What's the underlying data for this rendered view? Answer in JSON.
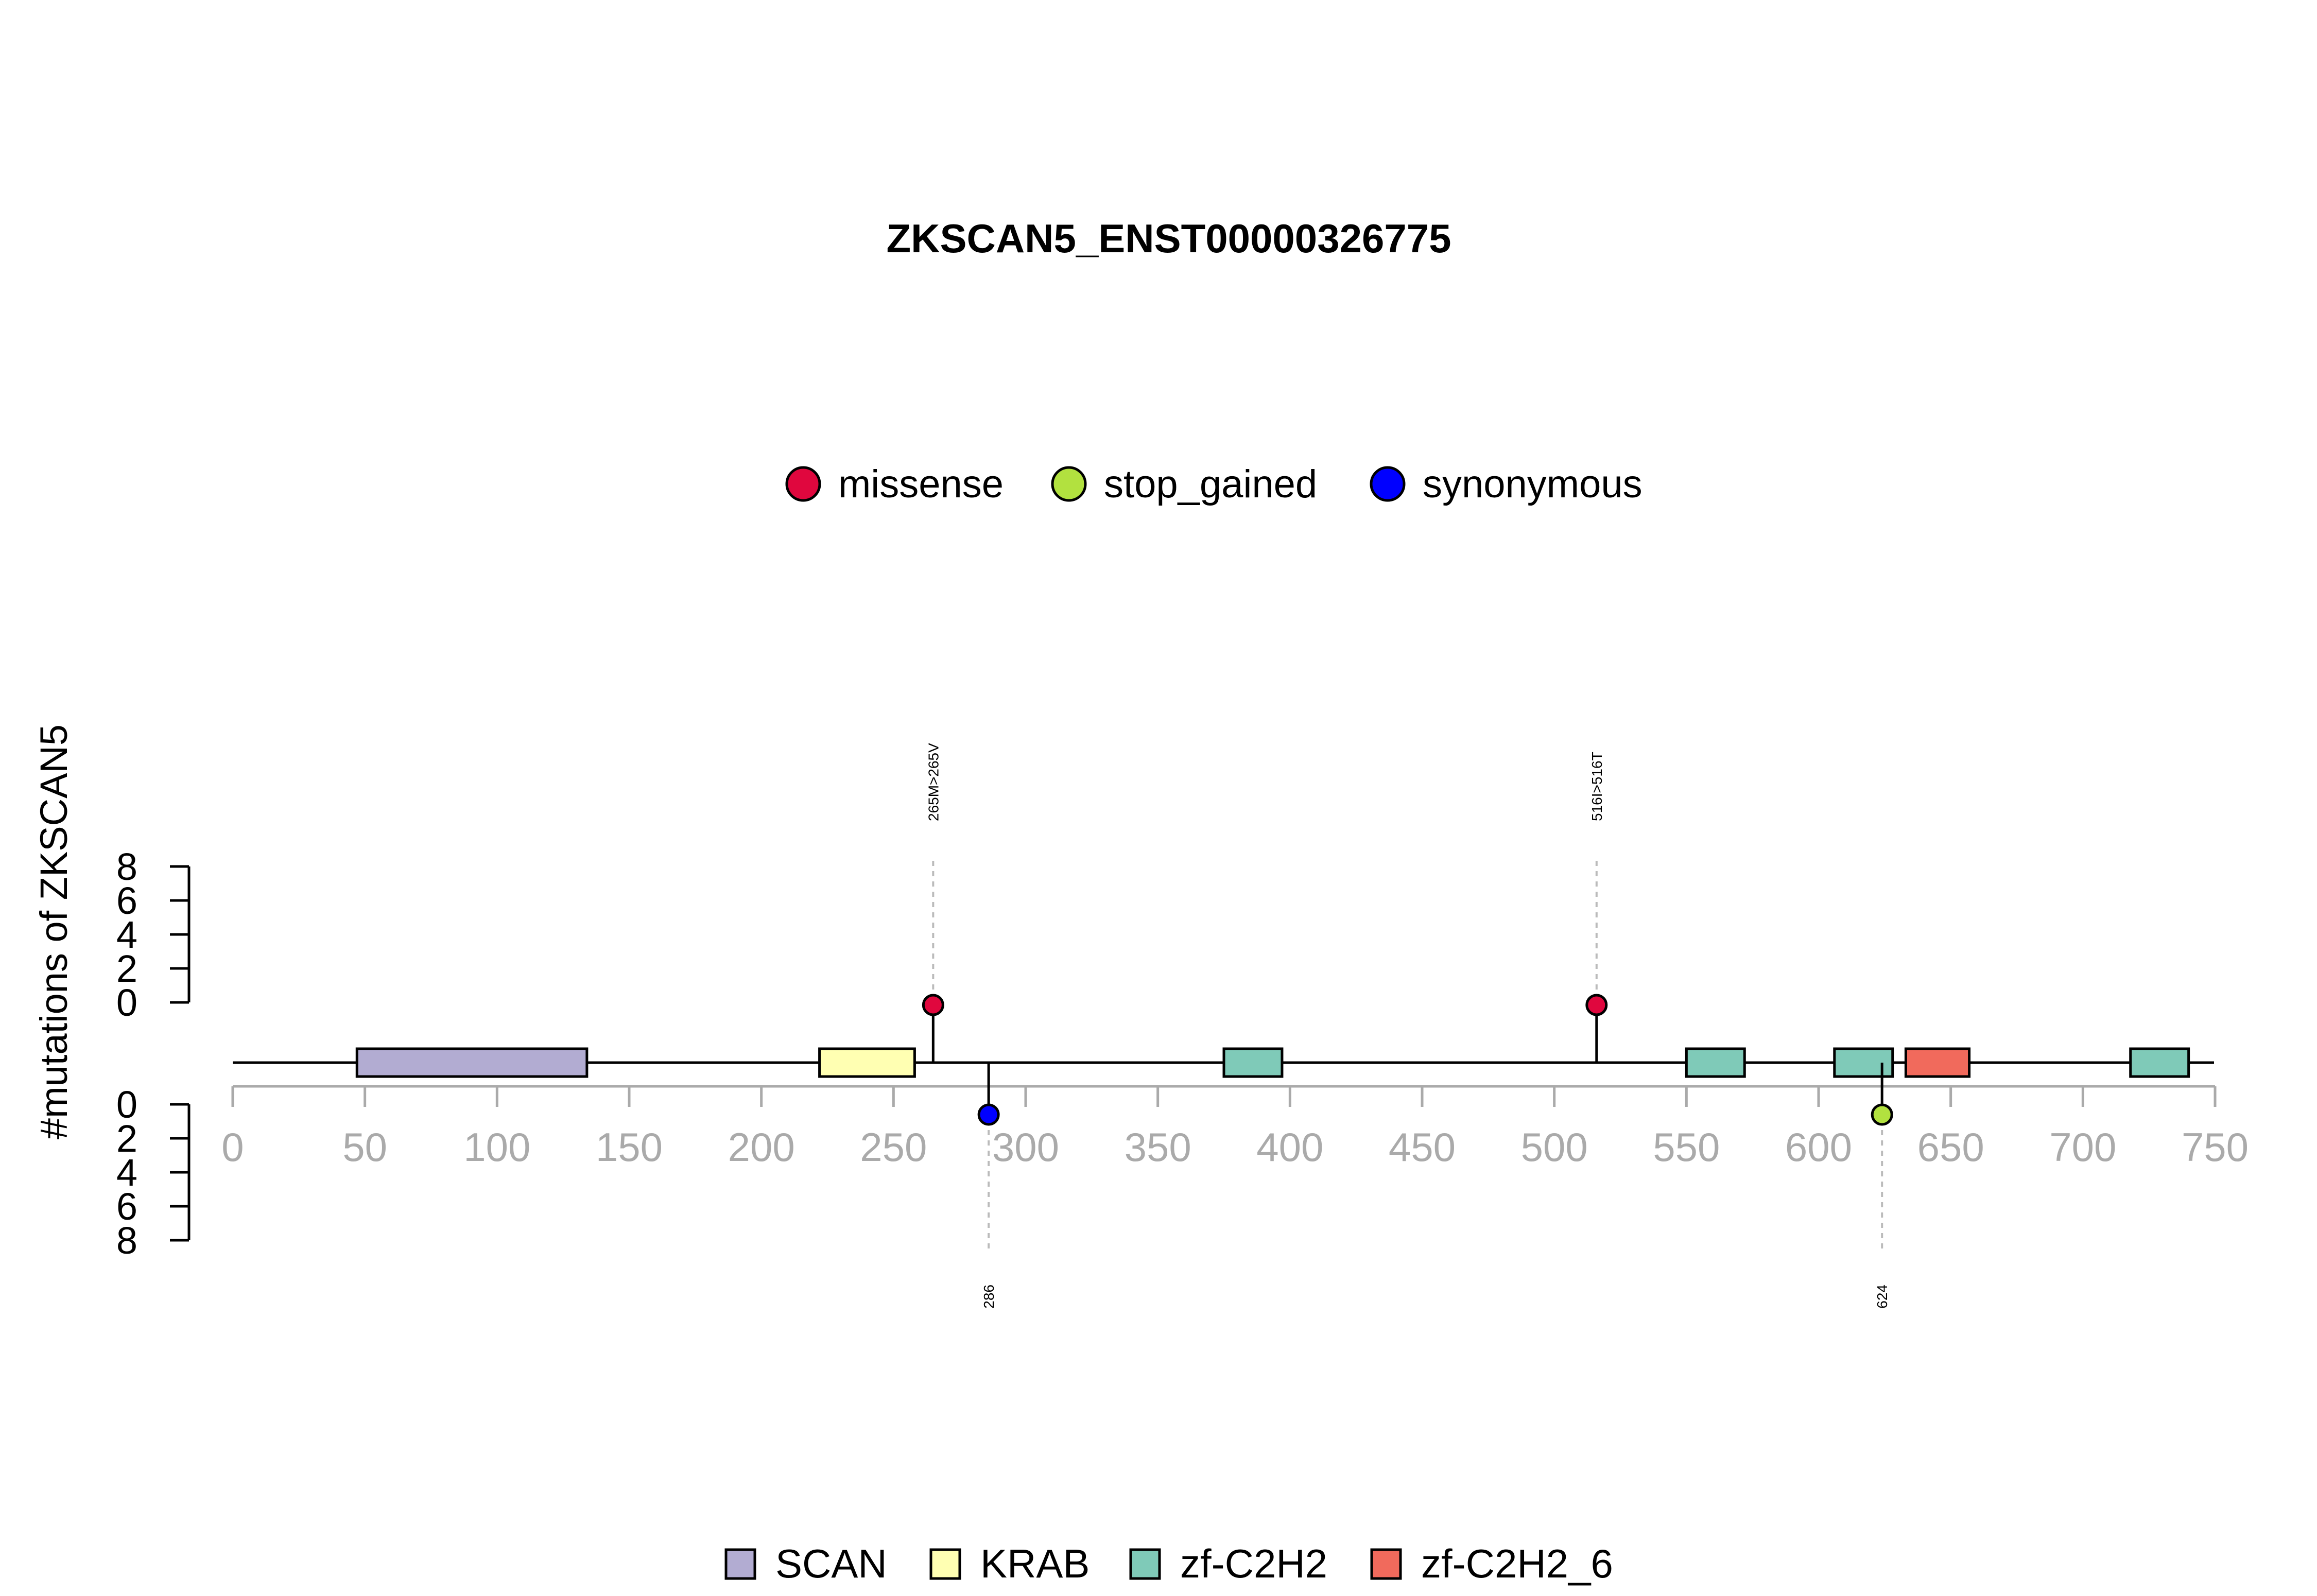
{
  "chart_data": {
    "type": "lollipop",
    "title": "ZKSCAN5_ENST00000326775",
    "ylabel": "#mutations of ZKSCAN5",
    "xlim": [
      0,
      750
    ],
    "x_ticks": [
      0,
      50,
      100,
      150,
      200,
      250,
      300,
      350,
      400,
      450,
      500,
      550,
      600,
      650,
      700,
      750
    ],
    "y_upper": {
      "ticks": [
        0,
        2,
        4,
        6,
        8
      ],
      "range": [
        0,
        8
      ]
    },
    "y_lower": {
      "ticks": [
        0,
        2,
        4,
        6,
        8
      ],
      "range": [
        0,
        8
      ]
    },
    "legend_top": [
      {
        "name": "missense",
        "color": "#e0073e"
      },
      {
        "name": "stop_gained",
        "color": "#b2e13f"
      },
      {
        "name": "synonymous",
        "color": "#0000ff"
      }
    ],
    "legend_bottom": [
      {
        "name": "SCAN",
        "color": "#b2acd2"
      },
      {
        "name": "KRAB",
        "color": "#ffffb2"
      },
      {
        "name": "zf-C2H2",
        "color": "#7fcab8"
      },
      {
        "name": "zf-C2H2_6",
        "color": "#f16a5c"
      }
    ],
    "domains": [
      {
        "name": "SCAN",
        "start": 47,
        "end": 134
      },
      {
        "name": "KRAB",
        "start": 222,
        "end": 258
      },
      {
        "name": "zf-C2H2",
        "start": 375,
        "end": 397
      },
      {
        "name": "zf-C2H2",
        "start": 550,
        "end": 572
      },
      {
        "name": "zf-C2H2",
        "start": 606,
        "end": 628
      },
      {
        "name": "zf-C2H2_6",
        "start": 633,
        "end": 657
      },
      {
        "name": "zf-C2H2",
        "start": 718,
        "end": 740
      }
    ],
    "mutations": [
      {
        "position": 265,
        "count": 1,
        "type": "missense",
        "side": "top",
        "label": "265M>265V"
      },
      {
        "position": 516,
        "count": 1,
        "type": "missense",
        "side": "top",
        "label": "516I>516T"
      },
      {
        "position": 286,
        "count": 1,
        "type": "synonymous",
        "side": "bottom",
        "label": "286"
      },
      {
        "position": 624,
        "count": 1,
        "type": "stop_gained",
        "side": "bottom",
        "label": "624"
      }
    ]
  }
}
